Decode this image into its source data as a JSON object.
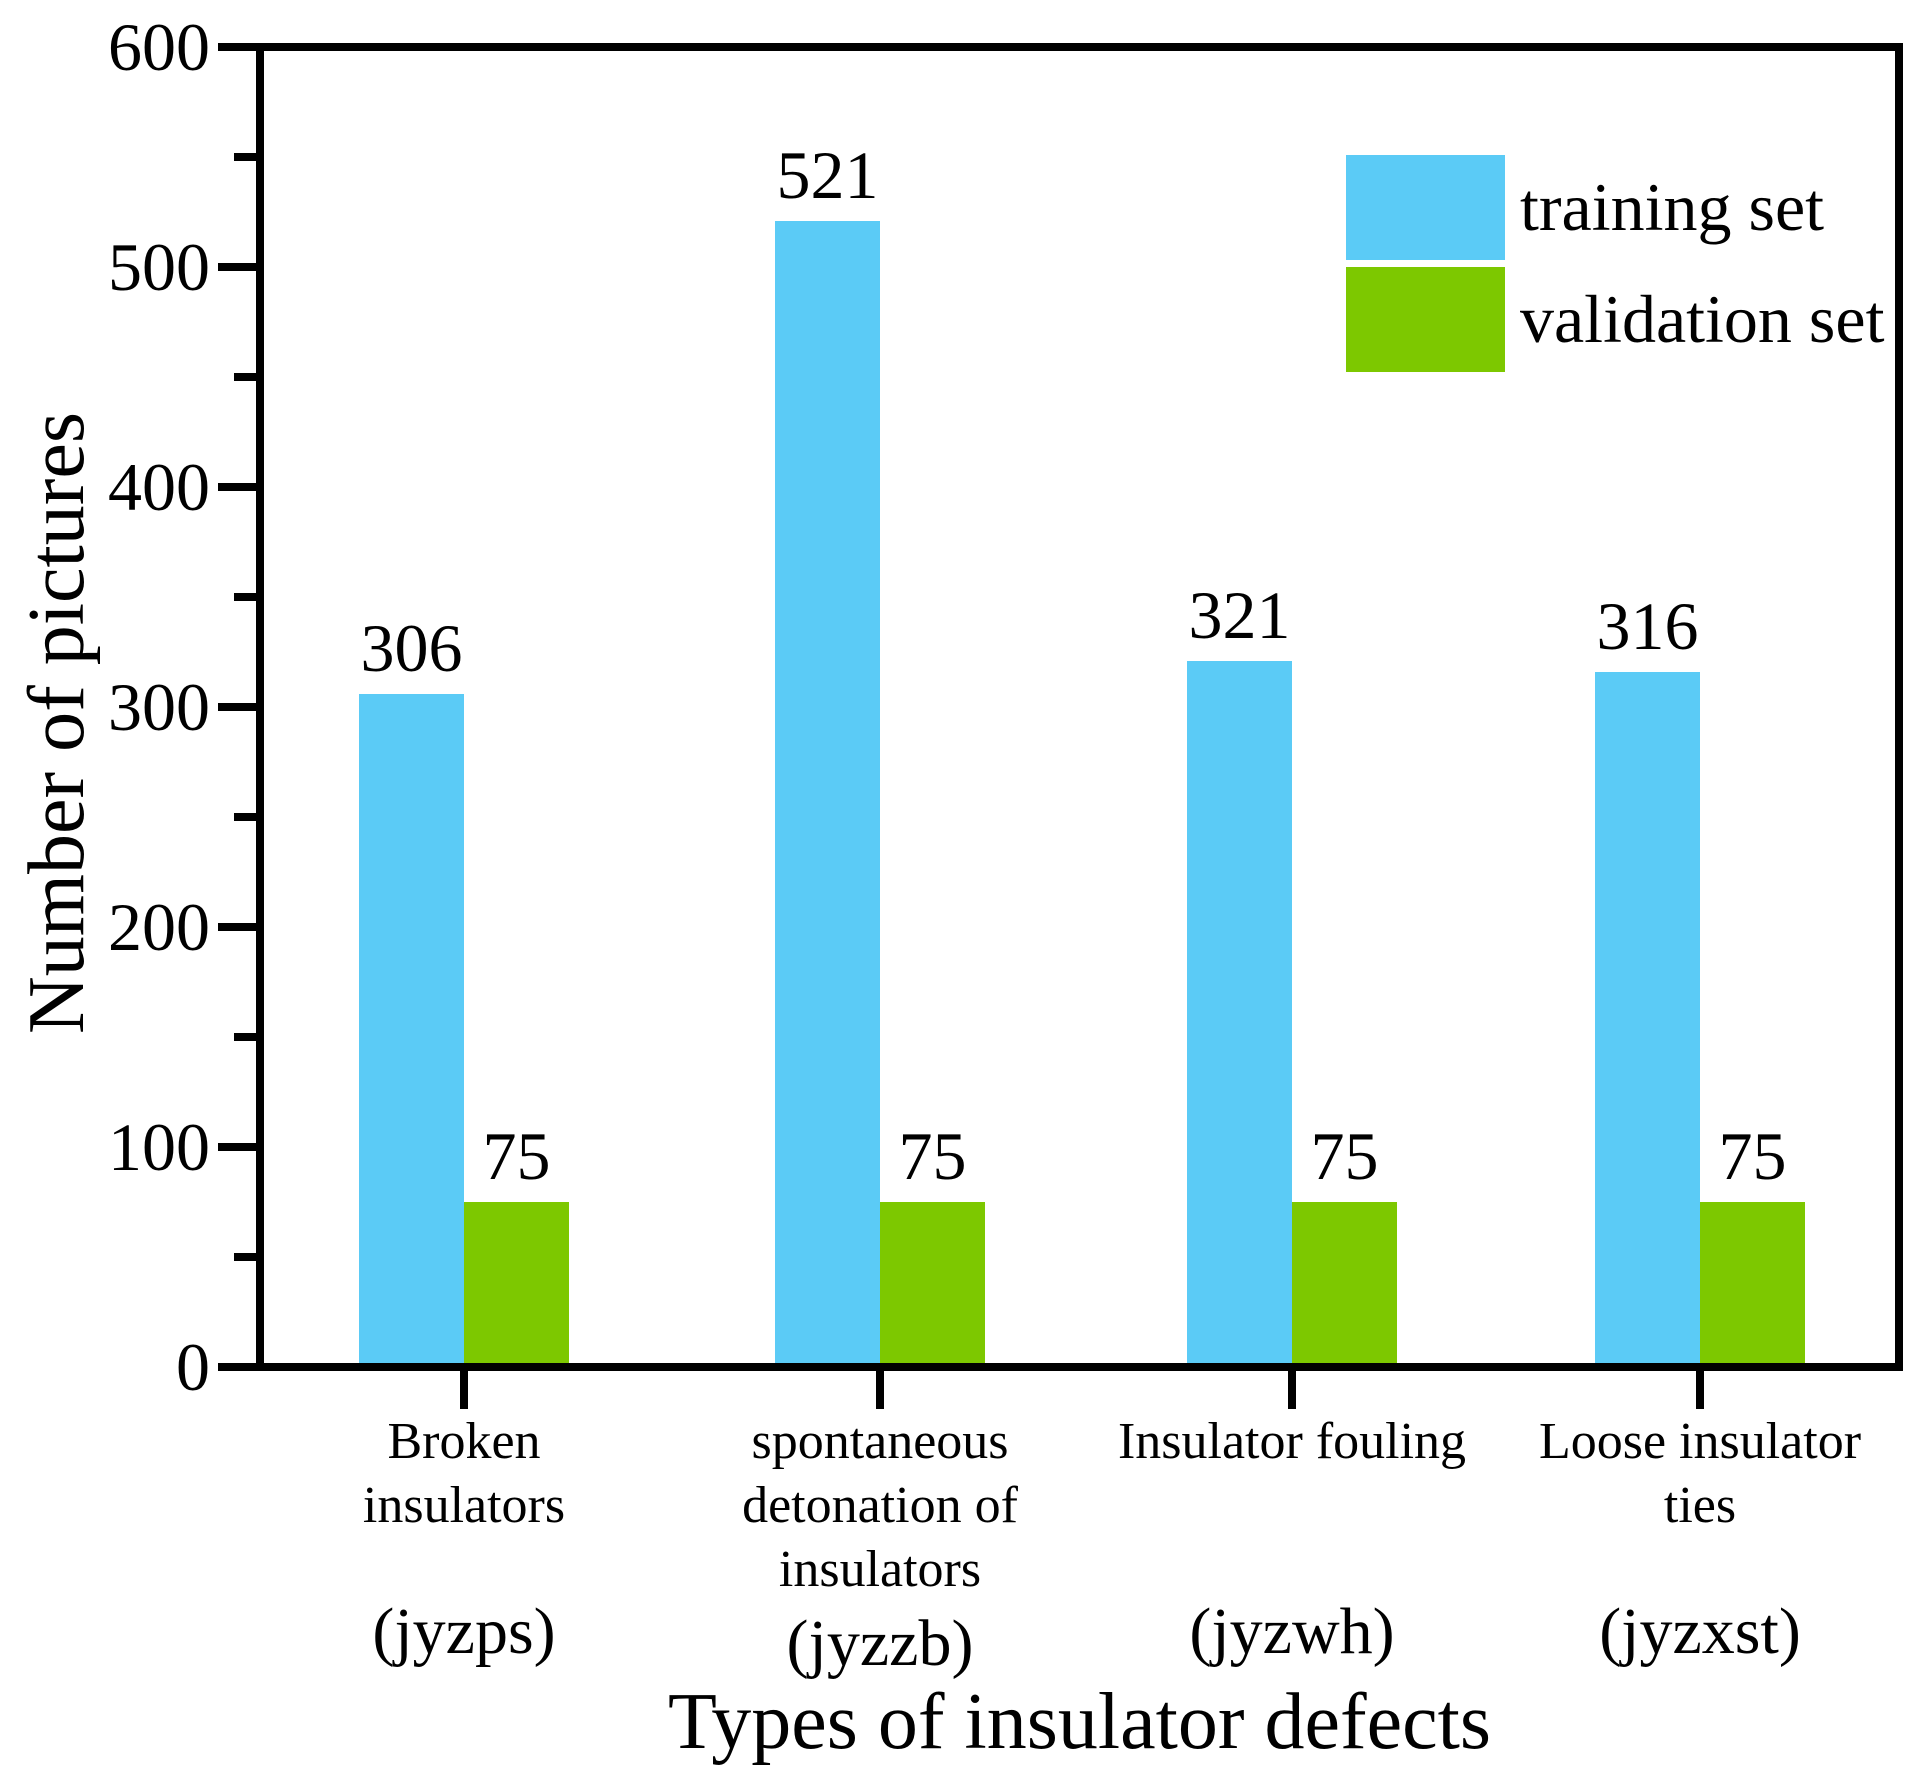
{
  "chart_data": {
    "type": "bar",
    "title": "",
    "xlabel": "Types of insulator defects",
    "ylabel": "Number of pictures",
    "categories": [
      {
        "name": "Broken insulators",
        "name_lines": [
          "Broken",
          "insulators"
        ],
        "code": "(jyzps)"
      },
      {
        "name": "spontaneous detonation of insulators",
        "name_lines": [
          "spontaneous",
          "detonation of",
          "insulators"
        ],
        "code": "(jyzzb)"
      },
      {
        "name": "Insulator fouling",
        "name_lines": [
          "Insulator fouling"
        ],
        "code": "(jyzwh)"
      },
      {
        "name": "Loose insulator ties",
        "name_lines": [
          "Loose insulator",
          "ties"
        ],
        "code": "(jyzxst)"
      }
    ],
    "series": [
      {
        "name": "training set",
        "color": "#5BCBF6",
        "values": [
          306,
          521,
          321,
          316
        ]
      },
      {
        "name": "validation set",
        "color": "#7DC800",
        "values": [
          75,
          75,
          75,
          75
        ]
      }
    ],
    "ylim": [
      0,
      600
    ],
    "y_major_ticks": [
      0,
      100,
      200,
      300,
      400,
      500,
      600
    ],
    "y_minor_step": 50,
    "grid": false,
    "legend_position": "top-right",
    "frame": "full-box",
    "colors": {
      "axis": "#000000",
      "text": "#000000",
      "background": "#ffffff"
    }
  }
}
